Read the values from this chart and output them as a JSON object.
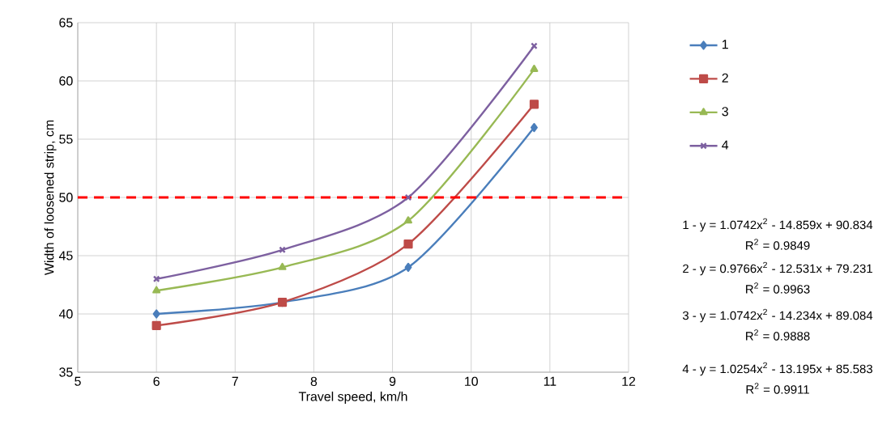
{
  "chart_data": {
    "type": "line",
    "xlabel": "Travel speed, km/h",
    "ylabel": "Width of loosened strip, cm",
    "x": [
      6,
      7.6,
      9.2,
      10.8
    ],
    "series": [
      {
        "name": "1",
        "color": "#4a7ebb",
        "marker": "diamond",
        "values": [
          40,
          41,
          44,
          56
        ]
      },
      {
        "name": "2",
        "color": "#be4b48",
        "marker": "square",
        "values": [
          39,
          41,
          46,
          58
        ]
      },
      {
        "name": "3",
        "color": "#98b954",
        "marker": "triangle",
        "values": [
          42,
          44,
          48,
          61
        ]
      },
      {
        "name": "4",
        "color": "#7d60a0",
        "marker": "cross",
        "values": [
          43,
          45.5,
          50,
          63
        ]
      }
    ],
    "xlim": [
      5,
      12
    ],
    "xticks": [
      5,
      6,
      7,
      8,
      9,
      10,
      11,
      12
    ],
    "ylim": [
      35,
      65
    ],
    "yticks": [
      35,
      40,
      45,
      50,
      55,
      60,
      65
    ],
    "grid": true,
    "legend": "right",
    "line_style": "solid",
    "ref_lines": [
      {
        "axis": "y",
        "value": 50,
        "color": "#ff0000",
        "line_style": "dashed"
      }
    ],
    "annotations": [
      "1 - y = 1.0742x$^{2}$ - 14.859x + 90.834",
      "R$^{2}$ = 0.9849",
      "2 - y = 0.9766x$^{2}$ - 12.531x + 79.231",
      "R$^{2}$ = 0.9963",
      "3 - y = 1.0742x$^{2}$ - 14.234x + 89.084",
      "R$^{2}$ = 0.9888",
      "4 - y = 1.0254x$^{2}$ - 13.195x + 85.583",
      "R$^{2}$ = 0.9911"
    ]
  }
}
